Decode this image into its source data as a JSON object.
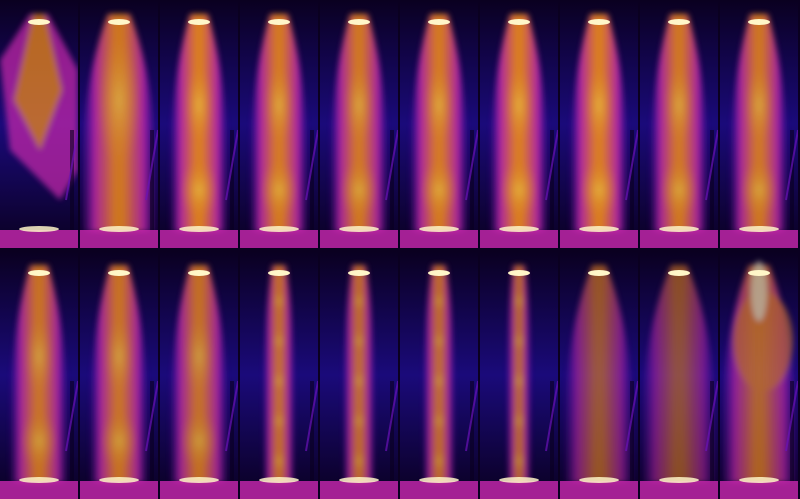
{
  "figure": {
    "rows": 2,
    "columns": 10,
    "palette": {
      "background": "#0a0020",
      "deep": "#1a0a7a",
      "violet": "#6a12b8",
      "magenta": "#c026a8",
      "orange": "#f08a1e",
      "amber": "#fbbf3a",
      "hot": "#fff6c8"
    },
    "panels": [
      {
        "row": 0,
        "col": 0,
        "plume": "spread",
        "intensity": 0.75,
        "wall": "dark"
      },
      {
        "row": 0,
        "col": 1,
        "plume": "wide",
        "intensity": 0.85,
        "wall": "magenta"
      },
      {
        "row": 0,
        "col": 2,
        "plume": "column",
        "intensity": 0.9,
        "wall": "deep"
      },
      {
        "row": 0,
        "col": 3,
        "plume": "column",
        "intensity": 0.88,
        "wall": "deep"
      },
      {
        "row": 0,
        "col": 4,
        "plume": "column",
        "intensity": 0.86,
        "wall": "deep"
      },
      {
        "row": 0,
        "col": 5,
        "plume": "column",
        "intensity": 0.88,
        "wall": "deep"
      },
      {
        "row": 0,
        "col": 6,
        "plume": "column",
        "intensity": 0.9,
        "wall": "deep"
      },
      {
        "row": 0,
        "col": 7,
        "plume": "column",
        "intensity": 0.9,
        "wall": "deep"
      },
      {
        "row": 0,
        "col": 8,
        "plume": "column",
        "intensity": 0.86,
        "wall": "deep"
      },
      {
        "row": 0,
        "col": 9,
        "plume": "column",
        "intensity": 0.85,
        "wall": "deep"
      },
      {
        "row": 1,
        "col": 0,
        "plume": "column",
        "intensity": 0.82,
        "wall": "deep"
      },
      {
        "row": 1,
        "col": 1,
        "plume": "column",
        "intensity": 0.82,
        "wall": "deep"
      },
      {
        "row": 1,
        "col": 2,
        "plume": "column",
        "intensity": 0.8,
        "wall": "deep"
      },
      {
        "row": 1,
        "col": 3,
        "plume": "narrow",
        "intensity": 0.8,
        "wall": "deep"
      },
      {
        "row": 1,
        "col": 4,
        "plume": "narrow",
        "intensity": 0.78,
        "wall": "deep"
      },
      {
        "row": 1,
        "col": 5,
        "plume": "narrow",
        "intensity": 0.78,
        "wall": "deep"
      },
      {
        "row": 1,
        "col": 6,
        "plume": "thin",
        "intensity": 0.75,
        "wall": "deep"
      },
      {
        "row": 1,
        "col": 7,
        "plume": "cone",
        "intensity": 0.6,
        "wall": "deep"
      },
      {
        "row": 1,
        "col": 8,
        "plume": "diffuse",
        "intensity": 0.55,
        "wall": "deep"
      },
      {
        "row": 1,
        "col": 9,
        "plume": "turbulent",
        "intensity": 0.7,
        "wall": "deep"
      }
    ]
  }
}
